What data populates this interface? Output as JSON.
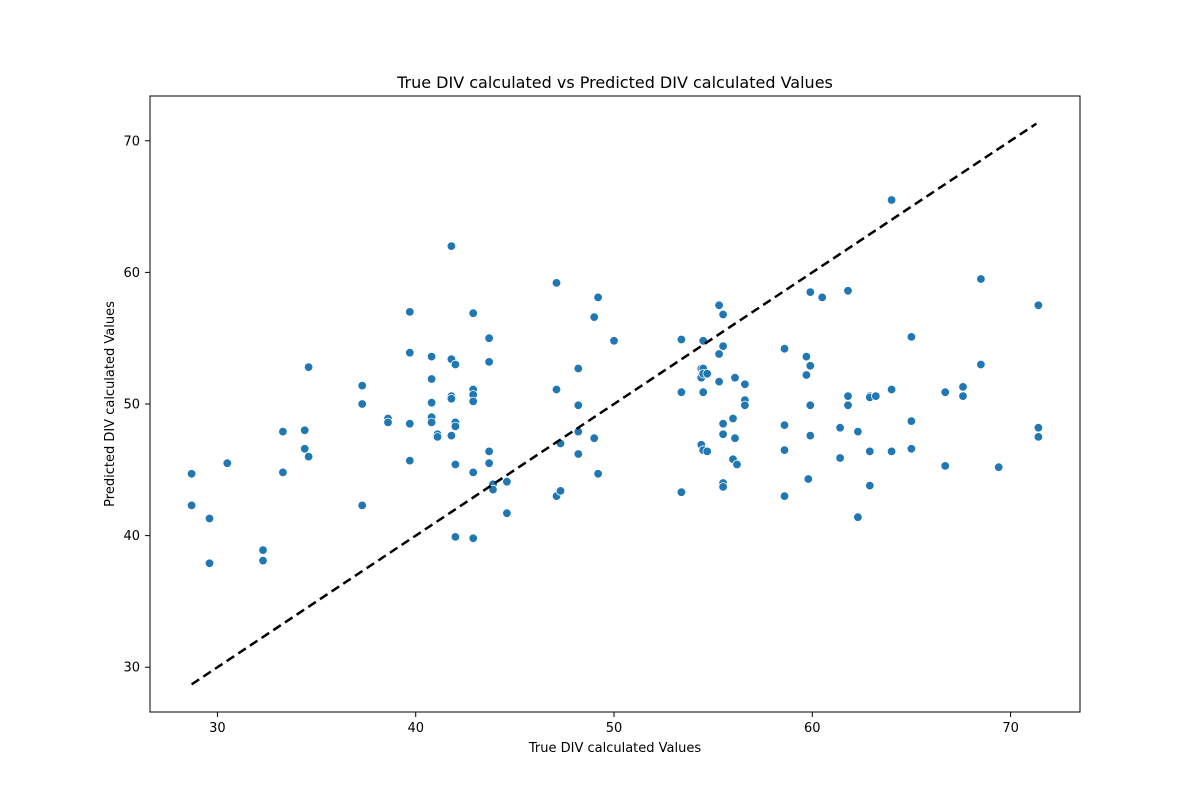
{
  "chart_data": {
    "type": "scatter",
    "title": "True DIV calculated vs Predicted DIV calculated Values",
    "xlabel": "True DIV calculated Values",
    "ylabel": "Predicted DIV calculated Values",
    "xlim": [
      26.6,
      73.5
    ],
    "ylim": [
      26.6,
      73.4
    ],
    "xticks": [
      30,
      40,
      50,
      60,
      70
    ],
    "yticks": [
      30,
      40,
      50,
      60,
      70
    ],
    "grid": false,
    "point_color": "#1f77b4",
    "reference_line": {
      "style": "dashed",
      "color": "#000000",
      "from": [
        28.7,
        28.7
      ],
      "to": [
        71.3,
        71.3
      ]
    },
    "series": [
      {
        "points": [
          [
            28.7,
            44.7
          ],
          [
            28.7,
            42.3
          ],
          [
            29.6,
            41.3
          ],
          [
            29.6,
            37.9
          ],
          [
            30.5,
            45.5
          ],
          [
            32.3,
            38.9
          ],
          [
            32.3,
            38.1
          ],
          [
            33.3,
            47.9
          ],
          [
            33.3,
            44.8
          ],
          [
            34.4,
            48.0
          ],
          [
            34.4,
            46.6
          ],
          [
            34.6,
            52.8
          ],
          [
            34.6,
            46.0
          ],
          [
            37.3,
            51.4
          ],
          [
            37.3,
            50.0
          ],
          [
            37.3,
            42.3
          ],
          [
            38.6,
            48.9
          ],
          [
            38.6,
            48.6
          ],
          [
            39.7,
            57.0
          ],
          [
            39.7,
            53.9
          ],
          [
            39.7,
            48.5
          ],
          [
            39.7,
            45.7
          ],
          [
            40.8,
            53.6
          ],
          [
            40.8,
            51.9
          ],
          [
            40.8,
            50.1
          ],
          [
            40.8,
            49.0
          ],
          [
            40.8,
            48.6
          ],
          [
            41.1,
            47.7
          ],
          [
            41.1,
            47.5
          ],
          [
            41.8,
            62.0
          ],
          [
            41.8,
            53.4
          ],
          [
            41.8,
            50.6
          ],
          [
            41.8,
            50.4
          ],
          [
            41.8,
            47.6
          ],
          [
            42.0,
            53.0
          ],
          [
            42.0,
            48.6
          ],
          [
            42.0,
            48.3
          ],
          [
            42.0,
            45.4
          ],
          [
            42.0,
            39.9
          ],
          [
            42.9,
            56.9
          ],
          [
            42.9,
            51.1
          ],
          [
            42.9,
            50.7
          ],
          [
            42.9,
            50.2
          ],
          [
            42.9,
            44.8
          ],
          [
            42.9,
            39.8
          ],
          [
            43.7,
            55.0
          ],
          [
            43.7,
            53.2
          ],
          [
            43.7,
            46.4
          ],
          [
            43.7,
            45.5
          ],
          [
            43.9,
            43.9
          ],
          [
            43.9,
            43.5
          ],
          [
            44.6,
            44.1
          ],
          [
            44.6,
            41.7
          ],
          [
            47.1,
            59.2
          ],
          [
            47.1,
            51.1
          ],
          [
            47.1,
            43.0
          ],
          [
            47.3,
            47.0
          ],
          [
            47.3,
            43.4
          ],
          [
            48.2,
            52.7
          ],
          [
            48.2,
            49.9
          ],
          [
            48.2,
            47.9
          ],
          [
            48.2,
            46.2
          ],
          [
            49.0,
            56.6
          ],
          [
            49.0,
            47.4
          ],
          [
            49.2,
            58.1
          ],
          [
            49.2,
            44.7
          ],
          [
            50.0,
            54.8
          ],
          [
            53.4,
            54.9
          ],
          [
            53.4,
            50.9
          ],
          [
            53.4,
            43.3
          ],
          [
            54.4,
            52.7
          ],
          [
            54.4,
            52.0
          ],
          [
            54.4,
            46.9
          ],
          [
            54.5,
            54.8
          ],
          [
            54.5,
            52.7
          ],
          [
            54.5,
            52.3
          ],
          [
            54.5,
            50.9
          ],
          [
            54.5,
            46.5
          ],
          [
            54.7,
            52.3
          ],
          [
            54.7,
            46.4
          ],
          [
            55.3,
            57.5
          ],
          [
            55.3,
            53.8
          ],
          [
            55.3,
            51.7
          ],
          [
            55.5,
            56.8
          ],
          [
            55.5,
            54.4
          ],
          [
            55.5,
            48.5
          ],
          [
            55.5,
            47.7
          ],
          [
            55.5,
            44.0
          ],
          [
            55.5,
            43.7
          ],
          [
            56.0,
            48.9
          ],
          [
            56.0,
            45.8
          ],
          [
            56.1,
            52.0
          ],
          [
            56.1,
            47.4
          ],
          [
            56.2,
            45.4
          ],
          [
            56.6,
            51.5
          ],
          [
            56.6,
            50.3
          ],
          [
            56.6,
            49.9
          ],
          [
            58.6,
            54.2
          ],
          [
            58.6,
            48.4
          ],
          [
            58.6,
            46.5
          ],
          [
            58.6,
            43.0
          ],
          [
            59.7,
            53.6
          ],
          [
            59.7,
            52.2
          ],
          [
            59.8,
            44.3
          ],
          [
            59.9,
            58.5
          ],
          [
            59.9,
            52.9
          ],
          [
            59.9,
            49.9
          ],
          [
            59.9,
            47.6
          ],
          [
            60.5,
            58.1
          ],
          [
            61.4,
            48.2
          ],
          [
            61.4,
            45.9
          ],
          [
            61.8,
            58.6
          ],
          [
            61.8,
            50.6
          ],
          [
            61.8,
            49.9
          ],
          [
            62.3,
            47.9
          ],
          [
            62.3,
            41.4
          ],
          [
            62.9,
            50.6
          ],
          [
            62.9,
            50.5
          ],
          [
            62.9,
            46.4
          ],
          [
            62.9,
            43.8
          ],
          [
            63.2,
            50.6
          ],
          [
            64.0,
            65.5
          ],
          [
            64.0,
            51.1
          ],
          [
            64.0,
            46.4
          ],
          [
            65.0,
            55.1
          ],
          [
            65.0,
            48.7
          ],
          [
            65.0,
            46.6
          ],
          [
            66.7,
            50.9
          ],
          [
            66.7,
            45.3
          ],
          [
            67.6,
            51.3
          ],
          [
            67.6,
            50.6
          ],
          [
            68.5,
            59.5
          ],
          [
            68.5,
            53.0
          ],
          [
            69.4,
            45.2
          ],
          [
            71.4,
            57.5
          ],
          [
            71.4,
            48.2
          ],
          [
            71.4,
            47.5
          ]
        ]
      }
    ]
  }
}
